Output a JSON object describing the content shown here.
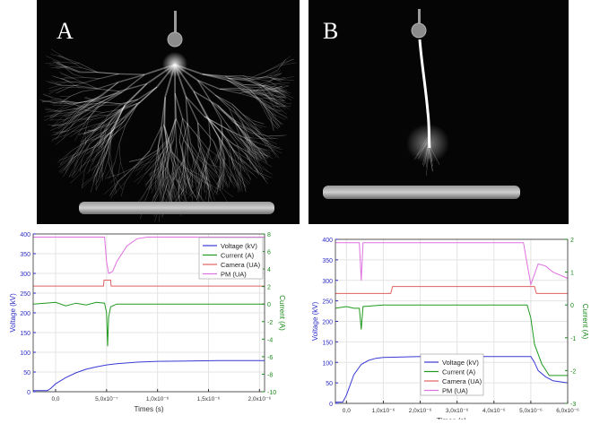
{
  "panels": {
    "a": {
      "letter": "A"
    },
    "b": {
      "letter": "B"
    }
  },
  "colors": {
    "voltage": "#3a3ad6",
    "current": "#1f9a1f",
    "camera": "#e06060",
    "pm": "#e070e0",
    "left_axis": "#2c2cc8",
    "right_axis": "#1a8a1a"
  },
  "chart_data": [
    {
      "type": "line",
      "xlabel": "Times (s)",
      "ylabel": "Voltage (kV)",
      "y2label": "Current (A)",
      "xlim": [
        -2.2e-07,
        2.05e-06
      ],
      "ylim": [
        0,
        400
      ],
      "y2lim": [
        -10,
        8
      ],
      "x_ticks": [
        {
          "v": 0,
          "label": "0,0"
        },
        {
          "v": 5e-07,
          "label": "5,0x10⁻⁷"
        },
        {
          "v": 1e-06,
          "label": "1,0x10⁻⁶"
        },
        {
          "v": 1.5e-06,
          "label": "1,5x10⁻⁶"
        },
        {
          "v": 2e-06,
          "label": "2,0x10⁻⁶"
        }
      ],
      "y_ticks": [
        0,
        50,
        100,
        150,
        200,
        250,
        300,
        350,
        400
      ],
      "y2_ticks": [
        -10,
        -8,
        -6,
        -4,
        -2,
        0,
        2,
        4,
        6,
        8
      ],
      "legend": {
        "placement": "top-right",
        "entries": [
          "Voltage (kV)",
          "Current (A)",
          "Camera (UA)",
          "PM (UA)"
        ]
      },
      "series": [
        {
          "name": "Voltage (kV)",
          "axis": "left",
          "color": "voltage",
          "x": [
            -2.2e-07,
            -8e-08,
            -5e-08,
            0,
            1e-07,
            2e-07,
            3e-07,
            4e-07,
            5e-07,
            6e-07,
            8e-07,
            1e-06,
            1.3e-06,
            1.6e-06,
            2.05e-06
          ],
          "y": [
            3,
            3,
            8,
            20,
            36,
            48,
            57,
            63,
            68,
            71,
            75,
            77,
            78,
            79,
            79
          ]
        },
        {
          "name": "Current (A)",
          "axis": "right",
          "color": "current",
          "x": [
            -2.2e-07,
            -1e-07,
            0,
            1e-07,
            2e-07,
            3e-07,
            4e-07,
            4.8e-07,
            5e-07,
            5.1e-07,
            5.2e-07,
            5.4e-07,
            6e-07,
            1e-06,
            1.5e-06,
            2.05e-06
          ],
          "y": [
            0,
            0.1,
            0.2,
            -0.2,
            0.1,
            -0.1,
            0.2,
            0.1,
            -1.0,
            -4.8,
            -1.5,
            -0.3,
            0,
            0,
            0,
            0
          ]
        },
        {
          "name": "Camera (UA)",
          "axis": "left",
          "color": "camera",
          "x": [
            -2.2e-07,
            4.7e-07,
            4.75e-07,
            5.4e-07,
            5.45e-07,
            2.05e-06
          ],
          "y": [
            268,
            268,
            283,
            283,
            268,
            268
          ]
        },
        {
          "name": "PM (UA)",
          "axis": "left",
          "color": "pm",
          "x": [
            -2.2e-07,
            4.8e-07,
            5e-07,
            5.2e-07,
            5.6e-07,
            6e-07,
            7e-07,
            8e-07,
            9e-07,
            2.05e-06
          ],
          "y": [
            392,
            392,
            330,
            300,
            305,
            330,
            370,
            388,
            392,
            392
          ]
        }
      ]
    },
    {
      "type": "line",
      "xlabel": "Times (s)",
      "ylabel": "Voltage (kV)",
      "y2label": "Current (A)",
      "xlim": [
        -3e-07,
        6e-06
      ],
      "ylim": [
        0,
        400
      ],
      "y2lim": [
        -3,
        2
      ],
      "x_ticks": [
        {
          "v": 0,
          "label": "0,0"
        },
        {
          "v": 1e-06,
          "label": "1,0x10⁻⁶"
        },
        {
          "v": 2e-06,
          "label": "2,0x10⁻⁶"
        },
        {
          "v": 3e-06,
          "label": "3,0x10⁻⁶"
        },
        {
          "v": 4e-06,
          "label": "4,0x10⁻⁶"
        },
        {
          "v": 5e-06,
          "label": "5,0x10⁻⁶"
        },
        {
          "v": 6e-06,
          "label": "6,0x10⁻⁶"
        }
      ],
      "y_ticks": [
        0,
        50,
        100,
        150,
        200,
        250,
        300,
        350,
        400
      ],
      "y2_ticks": [
        -3,
        -2,
        -1,
        0,
        1,
        2
      ],
      "legend": {
        "placement": "bottom-center",
        "entries": [
          "Voltage (kV)",
          "Current (A)",
          "Camera (UA)",
          "PM (UA)"
        ]
      },
      "series": [
        {
          "name": "Voltage (kV)",
          "axis": "left",
          "color": "voltage",
          "x": [
            -3e-07,
            -1e-07,
            0,
            2e-07,
            4e-07,
            6e-07,
            8e-07,
            1e-06,
            1.5e-06,
            2e-06,
            3e-06,
            4e-06,
            5e-06,
            5.1e-06,
            5.2e-06,
            5.4e-06,
            5.6e-06,
            6e-06
          ],
          "y": [
            3,
            3,
            20,
            70,
            95,
            105,
            110,
            112,
            113,
            114,
            114,
            114,
            114,
            100,
            80,
            65,
            55,
            50
          ]
        },
        {
          "name": "Current (A)",
          "axis": "right",
          "color": "current",
          "x": [
            -3e-07,
            0,
            2e-07,
            3.5e-07,
            4e-07,
            4.5e-07,
            1e-06,
            2e-06,
            3e-06,
            4e-06,
            4.9e-06,
            5e-06,
            5.1e-06,
            5.3e-06,
            5.5e-06,
            6e-06
          ],
          "y": [
            -0.1,
            -0.05,
            -0.1,
            -0.1,
            -0.75,
            -0.05,
            0,
            0,
            0,
            0,
            0,
            -0.4,
            -1.2,
            -1.8,
            -2.15,
            -2.15
          ]
        },
        {
          "name": "Camera (UA)",
          "axis": "left",
          "color": "camera",
          "x": [
            -3e-07,
            1.2e-06,
            1.25e-06,
            5.1e-06,
            5.15e-06,
            6e-06
          ],
          "y": [
            268,
            268,
            285,
            285,
            268,
            268
          ]
        },
        {
          "name": "PM (UA)",
          "axis": "left",
          "color": "pm",
          "x": [
            -3e-07,
            3.5e-07,
            4e-07,
            4.5e-07,
            1e-06,
            2e-06,
            3e-06,
            4e-06,
            4.8e-06,
            4.9e-06,
            5e-06,
            5.2e-06,
            5.4e-06,
            5.6e-06,
            6e-06
          ],
          "y": [
            392,
            392,
            300,
            392,
            392,
            392,
            392,
            392,
            392,
            340,
            290,
            340,
            335,
            320,
            305
          ]
        }
      ]
    }
  ]
}
